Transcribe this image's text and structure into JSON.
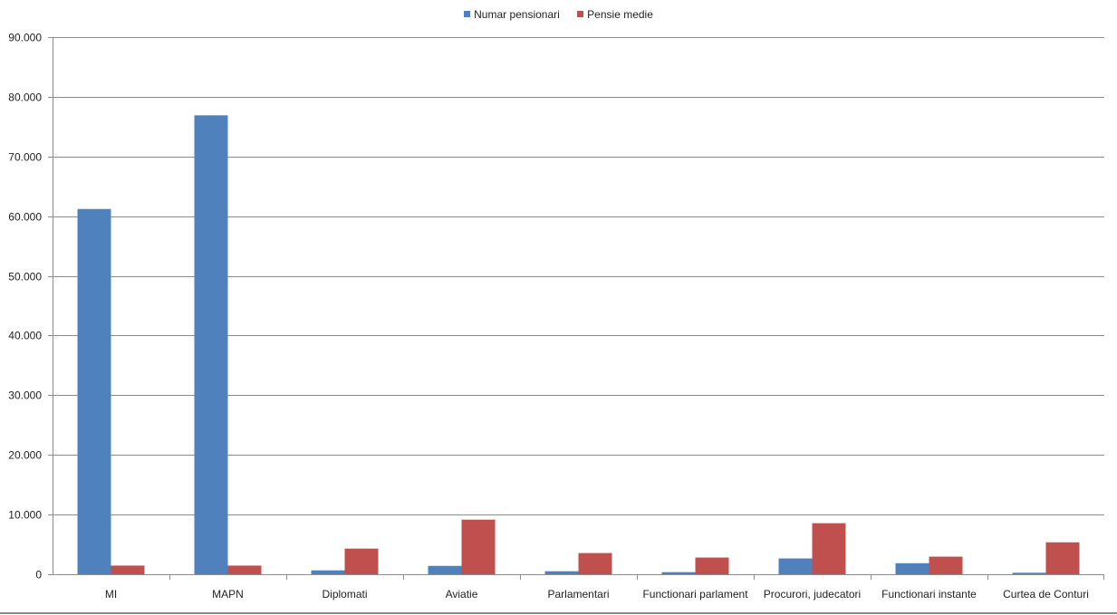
{
  "colors": {
    "grid": "#8c8c8c",
    "axis": "#8c8c8c",
    "text": "#222222"
  },
  "chart_data": {
    "type": "bar",
    "title": "",
    "xlabel": "",
    "ylabel": "",
    "ylim": [
      0,
      90000
    ],
    "y_ticks": [
      0,
      10000,
      20000,
      30000,
      40000,
      50000,
      60000,
      70000,
      80000,
      90000
    ],
    "y_tick_labels": [
      "0",
      "10.000",
      "20.000",
      "30.000",
      "40.000",
      "50.000",
      "60.000",
      "70.000",
      "80.000",
      "90.000"
    ],
    "grid": true,
    "legend_position": "top-center",
    "categories": [
      "MI",
      "MAPN",
      "Diplomati",
      "Aviatie",
      "Parlamentari",
      "Functionari parlament",
      "Procurori, judecatori",
      "Functionari instante",
      "Curtea de Conturi"
    ],
    "series": [
      {
        "name": "Numar pensionari",
        "color": "#4f81bd",
        "values": [
          61200,
          76900,
          650,
          1400,
          500,
          350,
          2650,
          1850,
          250
        ]
      },
      {
        "name": "Pensie medie",
        "color": "#c0504d",
        "values": [
          1450,
          1450,
          4300,
          9150,
          3550,
          2800,
          8550,
          2950,
          5350
        ]
      }
    ]
  }
}
